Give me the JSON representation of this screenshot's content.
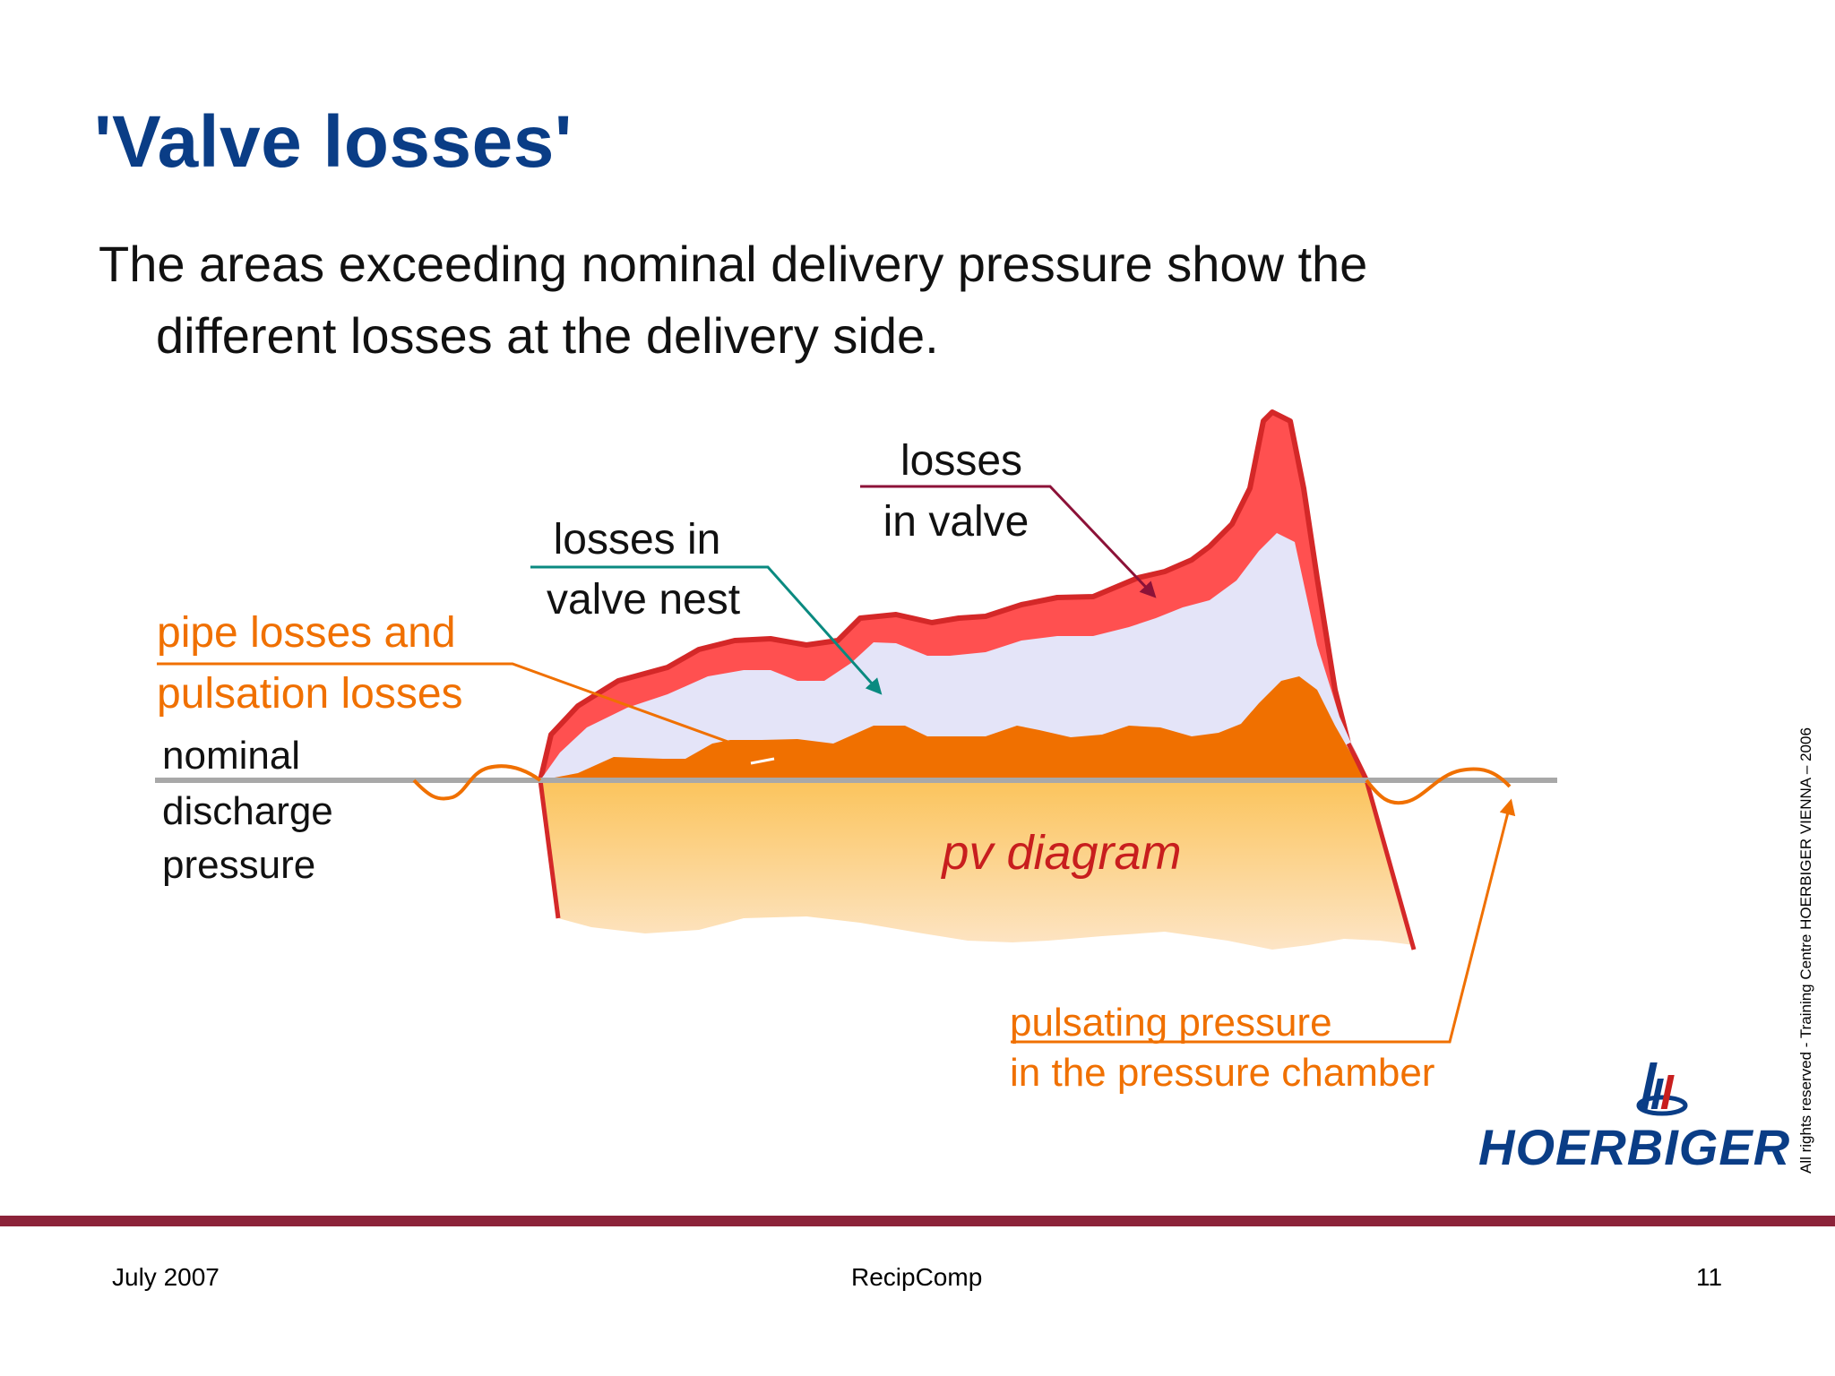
{
  "title": "'Valve losses'",
  "body": {
    "line1": "The areas exceeding nominal delivery pressure show the",
    "line2": "different losses at the delivery side."
  },
  "diagram": {
    "labels": {
      "losses_in_valve_line1": "losses",
      "losses_in_valve_line2": "in valve",
      "valve_nest_line1": "losses in",
      "valve_nest_line2": "valve nest",
      "pipe_losses_line1": "pipe losses and",
      "pipe_losses_line2": "pulsation losses",
      "nominal_line1": "nominal",
      "nominal_line2": "discharge",
      "nominal_line3": "pressure",
      "pv_diagram": "pv diagram",
      "pulsating_line1": "pulsating pressure",
      "pulsating_line2": "in the pressure chamber"
    },
    "colors": {
      "valve_loss": "#ff5050",
      "valve_loss_edge": "#d42828",
      "nest_loss": "#e4e4f8",
      "pipe_loss": "#f07000",
      "pv_fill_top": "#fbc45c",
      "pv_fill_bottom": "#fde3c0",
      "baseline": "#a8a8a8",
      "label_orange": "#f07000",
      "pointer_teal": "#0a8a80",
      "pointer_maroon": "#8c1238"
    }
  },
  "logo": {
    "name": "HOERBIGER",
    "icon": "hoerbiger-emblem-icon"
  },
  "copyright": "All rights reserved  -  Training Centre HOERBIGER  VIENNA – 2006",
  "footer": {
    "date": "July 2007",
    "center": "RecipComp",
    "page": "11"
  }
}
